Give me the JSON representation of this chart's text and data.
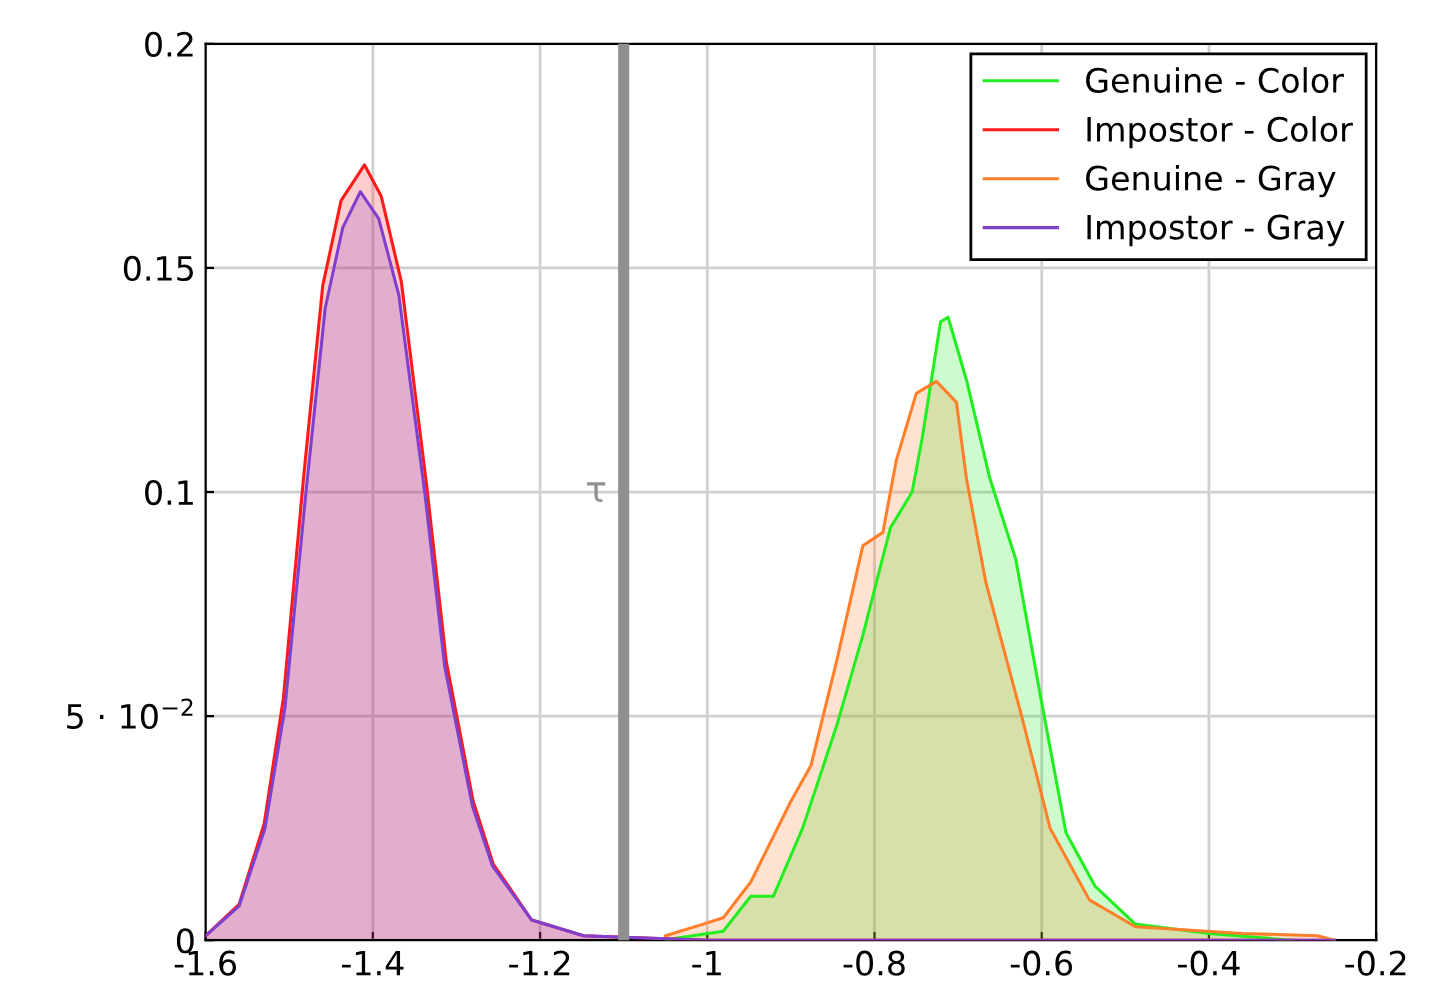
{
  "chart_data": {
    "type": "area",
    "xlim": [
      -1.6,
      -0.2
    ],
    "ylim": [
      0,
      0.2
    ],
    "xticks": [
      -1.6,
      -1.4,
      -1.2,
      -1,
      -0.8,
      -0.6,
      -0.4,
      -0.2
    ],
    "yticks": [
      0,
      {
        "value": 0.05,
        "label": "5 · 10$^{−2}$"
      },
      0.1,
      0.15,
      0.2
    ],
    "grid": true,
    "legend": "top right",
    "ref_lines": [
      {
        "axis": "x",
        "value": -1.1,
        "label": "τ",
        "color": "#909090"
      }
    ],
    "series": [
      {
        "name": "Genuine - Color",
        "color": "#22ee22",
        "x": [
          -1.05,
          -1.036,
          -0.981,
          -0.948,
          -0.921,
          -0.886,
          -0.845,
          -0.814,
          -0.781,
          -0.755,
          -0.743,
          -0.721,
          -0.712,
          -0.69,
          -0.662,
          -0.631,
          -0.602,
          -0.571,
          -0.536,
          -0.488,
          -0.4,
          -0.3
        ],
        "values": [
          0,
          0.0005,
          0.002,
          0.0098,
          0.0098,
          0.025,
          0.048,
          0.068,
          0.092,
          0.1,
          0.112,
          0.138,
          0.139,
          0.125,
          0.103,
          0.085,
          0.055,
          0.024,
          0.012,
          0.0036,
          0.0015,
          0
        ]
      },
      {
        "name": "Impostor - Color",
        "color": "#ff1a1a",
        "x": [
          -1.6,
          -1.56,
          -1.53,
          -1.507,
          -1.483,
          -1.46,
          -1.438,
          -1.41,
          -1.39,
          -1.366,
          -1.336,
          -1.312,
          -1.28,
          -1.256,
          -1.21,
          -1.148,
          -1.0,
          -0.25
        ],
        "values": [
          0.001,
          0.008,
          0.026,
          0.054,
          0.103,
          0.146,
          0.165,
          0.173,
          0.166,
          0.147,
          0.102,
          0.062,
          0.031,
          0.017,
          0.0045,
          0.001,
          0,
          0
        ]
      },
      {
        "name": "Genuine - Gray",
        "color": "#ff7f2a",
        "x": [
          -1.05,
          -1.005,
          -0.981,
          -0.948,
          -0.9,
          -0.876,
          -0.845,
          -0.814,
          -0.79,
          -0.774,
          -0.75,
          -0.726,
          -0.702,
          -0.69,
          -0.667,
          -0.624,
          -0.59,
          -0.543,
          -0.488,
          -0.36,
          -0.27,
          -0.25
        ],
        "values": [
          0.001,
          0.0036,
          0.005,
          0.013,
          0.031,
          0.039,
          0.0625,
          0.088,
          0.091,
          0.107,
          0.122,
          0.1247,
          0.12,
          0.103,
          0.08,
          0.05,
          0.025,
          0.009,
          0.003,
          0.0015,
          0.001,
          0
        ]
      },
      {
        "name": "Impostor - Gray",
        "color": "#7f3fcf",
        "x": [
          -1.6,
          -1.56,
          -1.529,
          -1.505,
          -1.48,
          -1.457,
          -1.436,
          -1.415,
          -1.393,
          -1.369,
          -1.338,
          -1.314,
          -1.281,
          -1.257,
          -1.21,
          -1.148,
          -1.0,
          -0.25
        ],
        "values": [
          0.001,
          0.0076,
          0.025,
          0.052,
          0.1,
          0.141,
          0.159,
          0.167,
          0.161,
          0.144,
          0.1,
          0.061,
          0.03,
          0.0166,
          0.0045,
          0.001,
          0,
          0
        ]
      }
    ]
  }
}
